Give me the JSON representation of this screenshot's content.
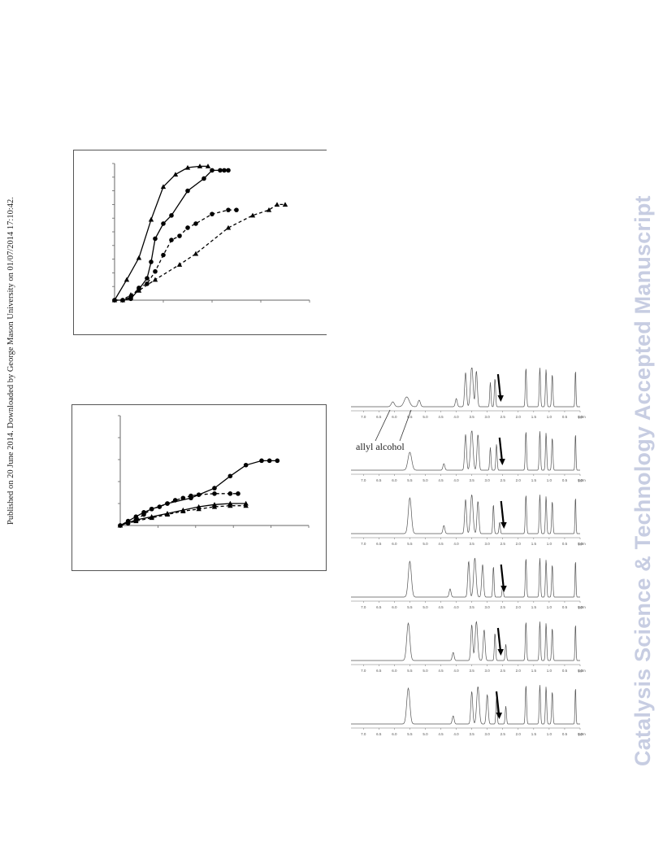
{
  "side_note": "Published on 20 June 2014. Downloaded by George Mason University on 01/07/2014 17:10:42.",
  "watermark": "Catalysis Science & Technology Accepted Manuscript",
  "chart_data": [
    {
      "type": "line",
      "title": "",
      "xlabel": "",
      "ylabel": "",
      "grid": false,
      "series": [
        {
          "marker": "triangle",
          "line": "solid",
          "x": [
            0,
            1.5,
            3,
            4.5,
            6,
            7.5,
            9,
            10.5,
            11.5
          ],
          "y": [
            0,
            0.15,
            0.31,
            0.59,
            0.83,
            0.92,
            0.97,
            0.98,
            0.98
          ]
        },
        {
          "marker": "circle",
          "line": "solid",
          "x": [
            0,
            1,
            2,
            3,
            4,
            4.5,
            5,
            6,
            7,
            9,
            11,
            12,
            13,
            13.5,
            14
          ],
          "y": [
            0,
            0,
            0.01,
            0.08,
            0.16,
            0.28,
            0.45,
            0.56,
            0.62,
            0.8,
            0.89,
            0.95,
            0.95,
            0.95,
            0.95
          ]
        },
        {
          "marker": "circle",
          "line": "dashed",
          "x": [
            0,
            1,
            2,
            3,
            4,
            5,
            6,
            7,
            8,
            9,
            10,
            12,
            14,
            15
          ],
          "y": [
            0,
            0,
            0.02,
            0.09,
            0.12,
            0.21,
            0.33,
            0.44,
            0.47,
            0.53,
            0.56,
            0.63,
            0.66,
            0.66
          ]
        },
        {
          "marker": "triangle",
          "line": "dashed",
          "x": [
            0,
            1,
            2,
            3,
            5,
            8,
            10,
            14,
            17,
            19,
            20,
            21
          ],
          "y": [
            0,
            0,
            0.04,
            0.07,
            0.15,
            0.26,
            0.34,
            0.53,
            0.62,
            0.66,
            0.7,
            0.7
          ]
        }
      ]
    },
    {
      "type": "line",
      "title": "",
      "xlabel": "",
      "ylabel": "",
      "grid": false,
      "series": [
        {
          "marker": "circle",
          "line": "solid",
          "x": [
            0,
            1,
            2,
            3,
            4,
            6,
            9,
            12,
            14,
            16,
            18,
            19,
            20
          ],
          "y": [
            0,
            0.04,
            0.08,
            0.12,
            0.15,
            0.2,
            0.25,
            0.34,
            0.45,
            0.55,
            0.59,
            0.59,
            0.59
          ]
        },
        {
          "marker": "circle",
          "line": "dashed",
          "x": [
            0,
            1,
            2,
            3,
            4,
            5,
            6,
            7,
            8,
            9,
            10,
            12,
            14,
            15
          ],
          "y": [
            0,
            0.02,
            0.05,
            0.1,
            0.15,
            0.17,
            0.2,
            0.23,
            0.25,
            0.27,
            0.28,
            0.29,
            0.29,
            0.29
          ]
        },
        {
          "marker": "triangle",
          "line": "solid",
          "x": [
            0,
            2,
            4,
            6,
            8,
            10,
            12,
            14,
            16
          ],
          "y": [
            0,
            0.05,
            0.08,
            0.11,
            0.14,
            0.17,
            0.19,
            0.2,
            0.2
          ]
        },
        {
          "marker": "triangle",
          "line": "dashed",
          "x": [
            0,
            2,
            4,
            6,
            8,
            10,
            12,
            14,
            16
          ],
          "y": [
            0,
            0.04,
            0.07,
            0.1,
            0.13,
            0.15,
            0.17,
            0.18,
            0.18
          ]
        }
      ]
    }
  ],
  "nmr": {
    "annotation": "allyl alcohol",
    "unit": "ppm",
    "panels": [
      {
        "ticks": [
          "7.0",
          "6.5",
          "6.0",
          "5.5",
          "5.0",
          "4.5",
          "4.0",
          "3.5",
          "3.0",
          "2.5",
          "2.0",
          "1.5",
          "1.0",
          "0.5",
          "0.0"
        ]
      },
      {
        "ticks": [
          "7.0",
          "6.5",
          "6.0",
          "5.5",
          "5.0",
          "4.5",
          "4.0",
          "3.5",
          "3.0",
          "2.5",
          "2.0",
          "1.5",
          "1.0",
          "0.5",
          "0.0"
        ]
      },
      {
        "ticks": [
          "7.0",
          "6.5",
          "6.0",
          "5.5",
          "5.0",
          "4.5",
          "4.0",
          "3.5",
          "3.0",
          "2.5",
          "2.0",
          "1.5",
          "1.0",
          "0.5",
          "0.0"
        ]
      },
      {
        "ticks": [
          "7.0",
          "6.5",
          "6.0",
          "5.5",
          "5.0",
          "4.5",
          "4.0",
          "3.5",
          "3.0",
          "2.5",
          "2.0",
          "1.5",
          "1.0",
          "0.5",
          "0.0"
        ]
      },
      {
        "ticks": [
          "7.0",
          "6.5",
          "6.0",
          "5.5",
          "5.0",
          "4.5",
          "4.0",
          "3.5",
          "3.0",
          "2.5",
          "2.0",
          "1.5",
          "1.0",
          "0.5",
          "0.0"
        ]
      },
      {
        "ticks": [
          "7.0",
          "6.5",
          "6.0",
          "5.5",
          "5.0",
          "4.5",
          "4.0",
          "3.5",
          "3.0",
          "2.5",
          "2.0",
          "1.5",
          "1.0",
          "0.5",
          "0.0"
        ]
      }
    ]
  }
}
